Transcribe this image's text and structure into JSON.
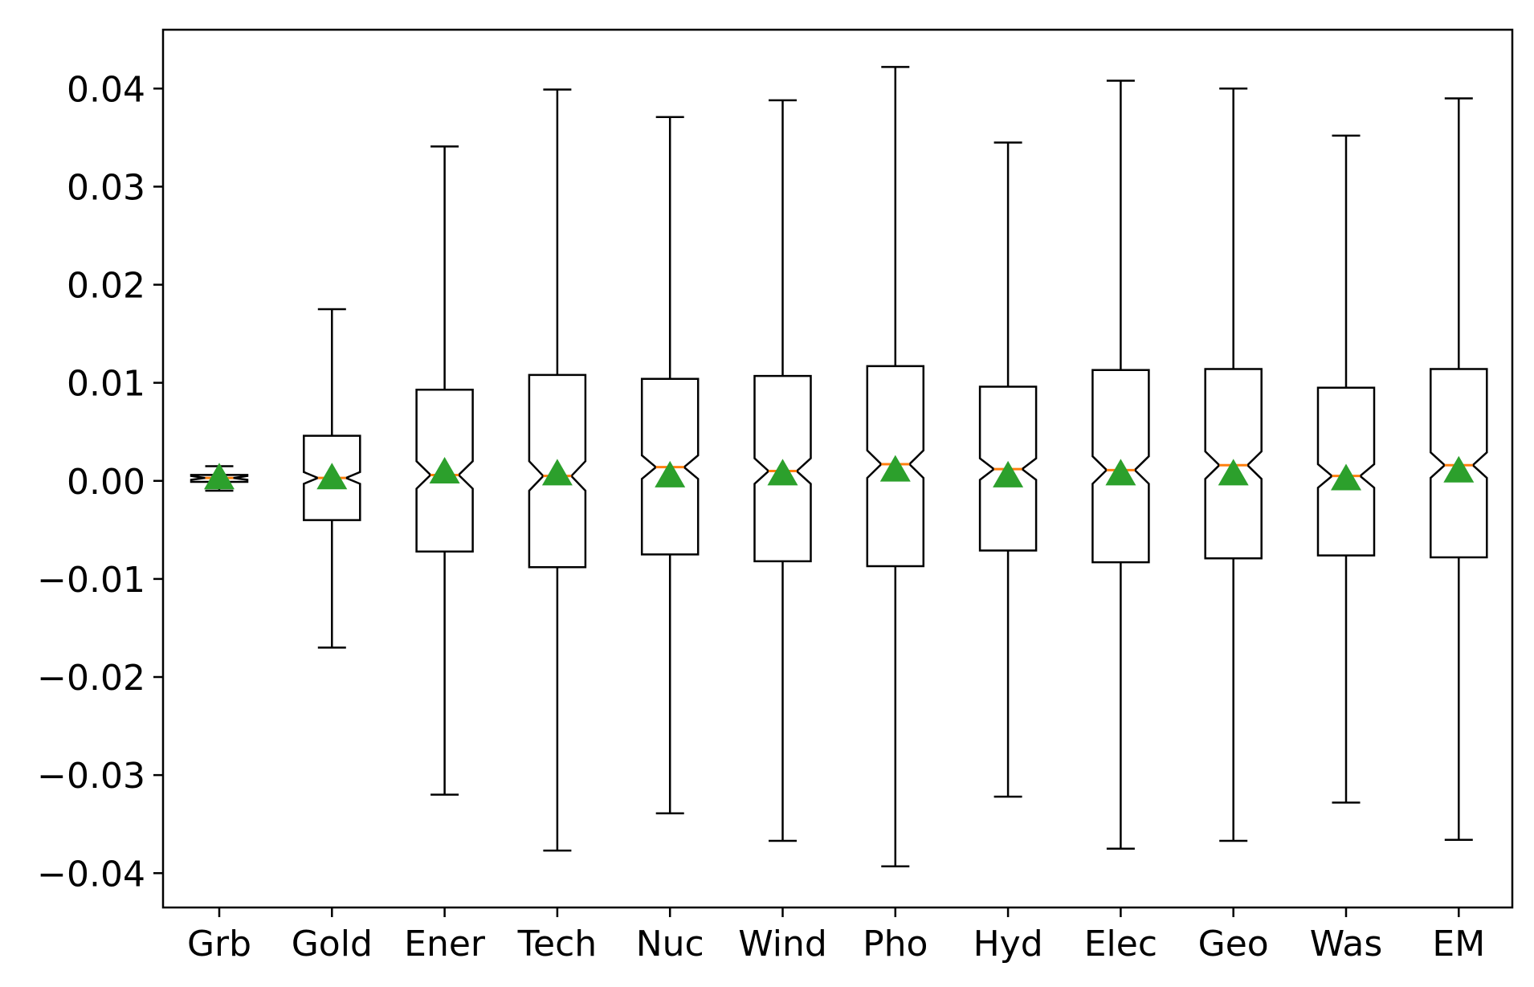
{
  "chart_data": {
    "type": "boxplot",
    "notched": true,
    "title": "",
    "xlabel": "",
    "ylabel": "",
    "ylim": [
      -0.0435,
      0.046
    ],
    "yticks": [
      -0.04,
      -0.03,
      -0.02,
      -0.01,
      0.0,
      0.01,
      0.02,
      0.03,
      0.04
    ],
    "ytick_labels": [
      "−0.04",
      "−0.03",
      "−0.02",
      "−0.01",
      "0.00",
      "0.01",
      "0.02",
      "0.03",
      "0.04"
    ],
    "grid": false,
    "legend": "none",
    "categories": [
      "Grb",
      "Gold",
      "Ener",
      "Tech",
      "Nuc",
      "Wind",
      "Pho",
      "Hyd",
      "Elec",
      "Geo",
      "Was",
      "EM"
    ],
    "series": [
      {
        "whisker_low": [
          -0.001,
          -0.017,
          -0.032,
          -0.0377,
          -0.0339,
          -0.0367,
          -0.0393,
          -0.0322,
          -0.0375,
          -0.0367,
          -0.0328,
          -0.0366
        ],
        "q1": [
          -0.0001,
          -0.004,
          -0.0072,
          -0.0088,
          -0.0075,
          -0.0082,
          -0.0087,
          -0.0071,
          -0.0083,
          -0.0079,
          -0.0076,
          -0.0078
        ],
        "median": [
          0.0003,
          0.0003,
          0.0006,
          0.0005,
          0.0014,
          0.001,
          0.0017,
          0.0012,
          0.0011,
          0.0016,
          0.0005,
          0.0016
        ],
        "q3": [
          0.0006,
          0.0046,
          0.0093,
          0.0108,
          0.0104,
          0.0107,
          0.0117,
          0.0096,
          0.0113,
          0.0114,
          0.0095,
          0.0114
        ],
        "whisker_high": [
          0.0015,
          0.0175,
          0.0341,
          0.0399,
          0.0371,
          0.0388,
          0.0422,
          0.0345,
          0.0408,
          0.04,
          0.0352,
          0.039
        ],
        "notch_low": [
          0.0001,
          -0.0003,
          -0.0008,
          -0.001,
          0.0002,
          -0.0003,
          0.0003,
          0.0001,
          -0.0003,
          0.0002,
          -0.0007,
          0.0003
        ],
        "notch_high": [
          0.0005,
          0.0009,
          0.002,
          0.002,
          0.0026,
          0.0023,
          0.0031,
          0.0023,
          0.0025,
          0.003,
          0.0017,
          0.0029
        ],
        "mean": [
          0.0002,
          0.0002,
          0.0008,
          0.0006,
          0.0004,
          0.0006,
          0.001,
          0.0004,
          0.0006,
          0.0006,
          0.0001,
          0.0009
        ]
      }
    ],
    "colors": {
      "box": "#000000",
      "median": "#ff7f0e",
      "mean_marker": "#2ca02c",
      "axes": "#000000",
      "background": "#ffffff"
    }
  }
}
